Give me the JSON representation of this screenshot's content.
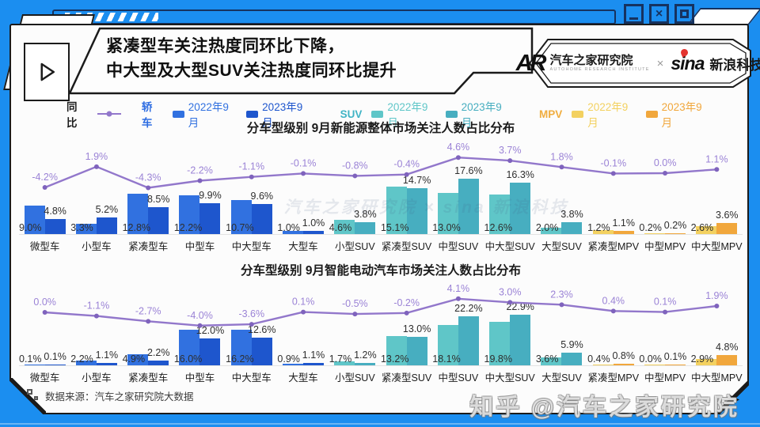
{
  "window": {
    "controls": [
      {
        "name": "minimize"
      },
      {
        "name": "close"
      },
      {
        "name": "maximize"
      }
    ]
  },
  "header": {
    "title_line1": "紧凑型车关注热度同环比下降，",
    "title_line2": "中大型及大型SUV关注热度同环比提升",
    "brand": {
      "ar_logo": "AR",
      "ar_name": "汽车之家研究院",
      "ar_subtitle": "AUTOHOME RESEARCH INSTITUTE",
      "separator": "×",
      "sina_logo": "sina",
      "sina_name": "新浪科技"
    }
  },
  "legend": {
    "line": {
      "label": "同比",
      "color": "#9277cb"
    },
    "groups": [
      {
        "label": "轿车",
        "color": "#2e6de2",
        "items": [
          {
            "label": "2022年9月",
            "color": "#3171e0"
          },
          {
            "label": "2023年9月",
            "color": "#1e56cd"
          }
        ]
      },
      {
        "label": "SUV",
        "color": "#41b4c5",
        "items": [
          {
            "label": "2022年9月",
            "color": "#5fc6c8"
          },
          {
            "label": "2023年9月",
            "color": "#47aec0"
          }
        ]
      },
      {
        "label": "MPV",
        "color": "#f0ad3f",
        "items": [
          {
            "label": "2022年9月",
            "color": "#f3d160"
          },
          {
            "label": "2023年9月",
            "color": "#f1a73c"
          }
        ]
      }
    ]
  },
  "palette": {
    "car": [
      "#3171e0",
      "#1e56cd"
    ],
    "suv": [
      "#5fc6c8",
      "#47aec0"
    ],
    "mpv": [
      "#f3d160",
      "#f1a73c"
    ],
    "line": "#9277cb",
    "line_label": "#9b83d6"
  },
  "category_types": [
    "car",
    "car",
    "car",
    "car",
    "car",
    "car",
    "suv",
    "suv",
    "suv",
    "suv",
    "suv",
    "mpv",
    "mpv",
    "mpv"
  ],
  "chart_data": [
    {
      "type": "bar",
      "title": "分车型级别 9月新能源整体市场关注人数占比分布",
      "unit": "%",
      "ylim": [
        0,
        20
      ],
      "categories": [
        "微型车",
        "小型车",
        "紧凑型车",
        "中型车",
        "中大型车",
        "大型车",
        "小型SUV",
        "紧凑型SUV",
        "中型SUV",
        "中大型SUV",
        "大型SUV",
        "紧凑型MPV",
        "中型MPV",
        "中大型MPV"
      ],
      "series": [
        {
          "name": "2022年9月",
          "values": [
            9.0,
            3.3,
            12.8,
            12.2,
            10.7,
            1.0,
            4.6,
            15.1,
            13.0,
            12.6,
            2.0,
            1.2,
            0.2,
            2.6
          ]
        },
        {
          "name": "2023年9月",
          "values": [
            4.8,
            5.2,
            8.5,
            9.9,
            9.6,
            1.0,
            3.8,
            14.7,
            17.6,
            16.3,
            3.8,
            1.1,
            0.2,
            3.6
          ]
        }
      ],
      "line_series": {
        "name": "同比",
        "values": [
          -4.2,
          1.9,
          -4.3,
          -2.2,
          -1.1,
          -0.1,
          -0.8,
          -0.4,
          4.6,
          3.7,
          1.8,
          -0.1,
          0.0,
          1.1
        ]
      }
    },
    {
      "type": "bar",
      "title": "分车型级别 9月智能电动汽车市场关注人数占比分布",
      "unit": "%",
      "ylim": [
        0,
        25
      ],
      "categories": [
        "微型车",
        "小型车",
        "紧凑型车",
        "中型车",
        "中大型车",
        "大型车",
        "小型SUV",
        "紧凑型SUV",
        "中型SUV",
        "中大型SUV",
        "大型SUV",
        "紧凑型MPV",
        "中型MPV",
        "中大型MPV"
      ],
      "series": [
        {
          "name": "2022年9月",
          "values": [
            0.1,
            2.2,
            4.9,
            16.0,
            16.2,
            0.9,
            1.7,
            13.2,
            18.1,
            19.8,
            3.6,
            0.4,
            0.0,
            2.9
          ]
        },
        {
          "name": "2023年9月",
          "values": [
            0.1,
            1.1,
            2.2,
            12.0,
            12.6,
            1.1,
            1.2,
            13.0,
            22.2,
            22.9,
            5.9,
            0.8,
            0.1,
            4.8
          ]
        }
      ],
      "line_series": {
        "name": "同比",
        "values": [
          0.0,
          -1.1,
          -2.7,
          -4.0,
          -3.6,
          0.1,
          -0.5,
          -0.2,
          4.1,
          3.0,
          2.3,
          0.4,
          0.1,
          1.9
        ]
      }
    }
  ],
  "watermarks": {
    "chart": "汽车之家研究院 × sina 新浪科技",
    "page": "知乎 @汽车之家研究院"
  },
  "footer": {
    "source": "数据来源：汽车之家研究院大数据"
  }
}
